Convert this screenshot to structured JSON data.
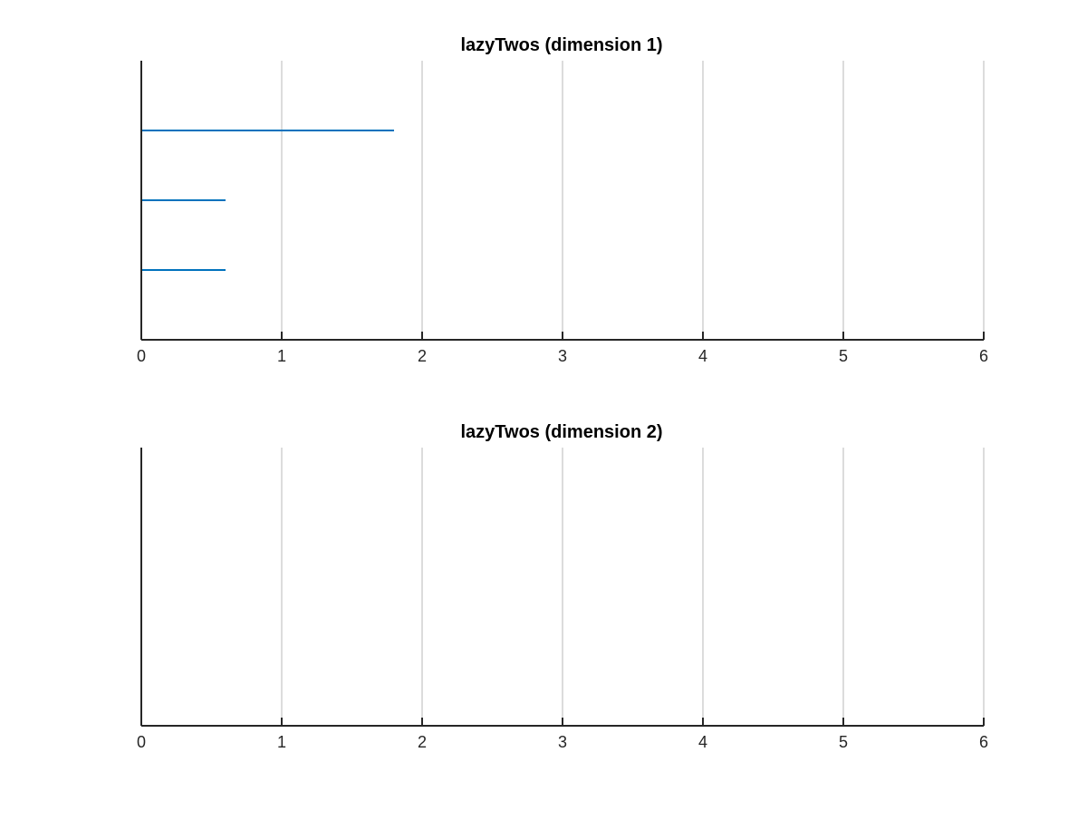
{
  "chart_data": [
    {
      "type": "bar",
      "orientation": "horizontal",
      "title": "lazyTwos (dimension 1)",
      "xlabel": "",
      "ylabel": "",
      "xlim": [
        0,
        6
      ],
      "xticks": [
        "0",
        "1",
        "2",
        "3",
        "4",
        "5",
        "6"
      ],
      "grid": "vertical",
      "color": "#0072BD",
      "values": [
        0.6,
        0.6,
        1.8
      ]
    },
    {
      "type": "bar",
      "orientation": "horizontal",
      "title": "lazyTwos (dimension 2)",
      "xlabel": "",
      "ylabel": "",
      "xlim": [
        0,
        6
      ],
      "xticks": [
        "0",
        "1",
        "2",
        "3",
        "4",
        "5",
        "6"
      ],
      "grid": "vertical",
      "color": "#0072BD",
      "values": []
    }
  ]
}
